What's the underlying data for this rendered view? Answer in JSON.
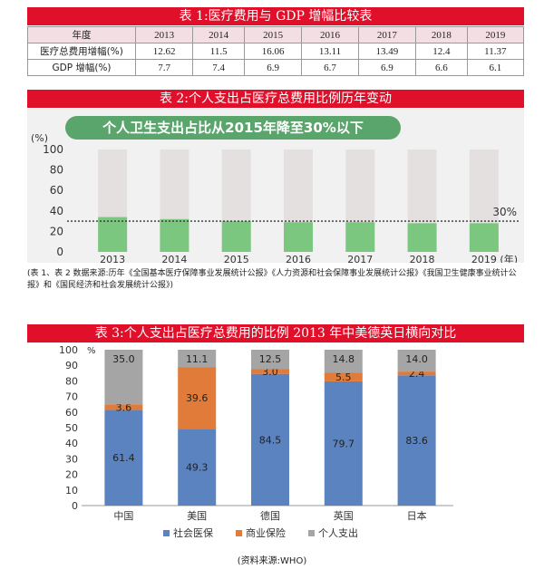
{
  "table1": {
    "title": "表 1:医疗费用与 GDP 增幅比较表",
    "header": [
      "年度",
      "2013",
      "2014",
      "2015",
      "2016",
      "2017",
      "2018",
      "2019"
    ],
    "rows": [
      {
        "label": "医疗总费用增幅(%)",
        "values": [
          "12.62",
          "11.5",
          "16.06",
          "13.11",
          "13.49",
          "12.4",
          "11.37"
        ]
      },
      {
        "label": "GDP 增幅(%)",
        "values": [
          "7.7",
          "7.4",
          "6.9",
          "6.7",
          "6.9",
          "6.6",
          "6.1"
        ]
      }
    ]
  },
  "chart2": {
    "title": "表 2:个人支出占医疗总费用比例历年变动",
    "callout": "个人卫生支出占比从2015年降至30%以下",
    "y_unit": "(%)",
    "x_unit": "(年)",
    "ref_label": "30%",
    "colors": {
      "bar": "#7cc77f",
      "bg": "#e4e0e0",
      "ref": "#333333"
    }
  },
  "source1": "(表 1、表 2 数据来源:历年《全国基本医疗保障事业发展统计公报》《人力资源和社会保障事业发展统计公报》《我国卫生健康事业统计公报》和《国民经济和社会发展统计公报》)",
  "chart3": {
    "title": "表 3:个人支出占医疗总费用的比例 2013 年中美德英日横向对比",
    "y_unit": "%",
    "colors": {
      "social": "#5b83bf",
      "commercial": "#e07b39",
      "personal": "#a5a5a5"
    }
  },
  "source2": "(资料来源:WHO)",
  "chart_data": [
    {
      "type": "bar",
      "categories": [
        "2013",
        "2014",
        "2015",
        "2016",
        "2017",
        "2018",
        "2019"
      ],
      "values": [
        34,
        32,
        30,
        29,
        29,
        28,
        28
      ],
      "ylim": [
        0,
        100
      ],
      "yticks": [
        0,
        20,
        40,
        60,
        80,
        100
      ],
      "reference_line": 30
    },
    {
      "type": "bar",
      "stacked": true,
      "categories": [
        "中国",
        "美国",
        "德国",
        "英国",
        "日本"
      ],
      "series": [
        {
          "name": "社会医保",
          "values": [
            61.4,
            49.3,
            84.5,
            79.7,
            83.6
          ]
        },
        {
          "name": "商业保险",
          "values": [
            3.6,
            39.6,
            3.0,
            5.5,
            2.4
          ]
        },
        {
          "name": "个人支出",
          "values": [
            35.0,
            11.1,
            12.5,
            14.8,
            14.0
          ]
        }
      ],
      "ylim": [
        0,
        100
      ],
      "yticks": [
        0,
        10,
        20,
        30,
        40,
        50,
        60,
        70,
        80,
        90,
        100
      ],
      "legend": "bottom"
    }
  ]
}
